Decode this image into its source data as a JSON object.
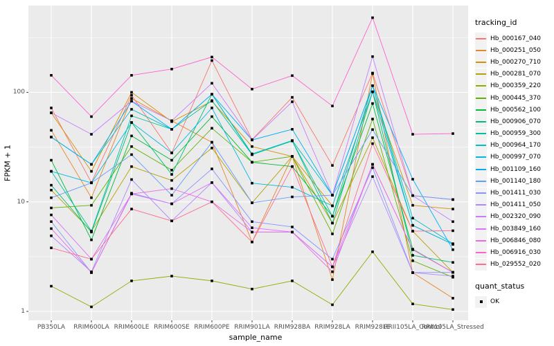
{
  "chart_data": {
    "type": "line",
    "title": "",
    "xlabel": "sample_name",
    "ylabel": "FPKM + 1",
    "y_scale": "log10",
    "ylim": [
      0.83,
      620
    ],
    "y_ticks": [
      1,
      10,
      100
    ],
    "y_tick_labels": [
      "1",
      "10",
      "100"
    ],
    "y_minor_ticks": [
      3.162,
      31.62,
      316.2
    ],
    "grid": true,
    "legend_position": "right",
    "categories": [
      "PB350LA",
      "RRIM600LA",
      "RRIM600LE",
      "RRIM600SE",
      "RRIM600PE",
      "RRIM901LA",
      "RRIM928BA",
      "RRIM928LA",
      "RRIM928LE",
      "RRII105LA_Control",
      "RRII105LA_Stressed"
    ],
    "series": [
      {
        "name": "Hb_000167_040",
        "color": "#F8766D",
        "values": [
          72,
          15,
          94,
          28,
          195,
          37,
          90,
          21.5,
          150,
          11.4,
          10.5
        ]
      },
      {
        "name": "Hb_000251_050",
        "color": "#E88526",
        "values": [
          45,
          10.9,
          88,
          55,
          35,
          4.3,
          26,
          1.95,
          148,
          2.26,
          1.32
        ]
      },
      {
        "name": "Hb_000270_710",
        "color": "#D39200",
        "values": [
          65,
          19,
          100,
          54,
          83,
          32,
          26,
          9.2,
          101,
          9.3,
          8.6
        ]
      },
      {
        "name": "Hb_000281_070",
        "color": "#B79F00",
        "values": [
          12.8,
          5.4,
          21,
          15.7,
          31,
          9.8,
          26,
          6.4,
          38.5,
          5.4,
          2.27
        ]
      },
      {
        "name": "Hb_000359_220",
        "color": "#93AA00",
        "values": [
          1.7,
          1.1,
          1.9,
          2.1,
          1.9,
          1.6,
          1.9,
          1.15,
          3.5,
          1.17,
          1.04
        ]
      },
      {
        "name": "Hb_000445_370",
        "color": "#5EB300",
        "values": [
          8.8,
          9.3,
          32,
          19.5,
          47,
          23,
          26,
          5.1,
          57,
          2.9,
          2.05
        ]
      },
      {
        "name": "Hb_000562_100",
        "color": "#00BA38",
        "values": [
          24,
          4.5,
          40,
          24,
          60,
          23,
          21,
          7.4,
          79,
          3.7,
          2.27
        ]
      },
      {
        "name": "Hb_000906_070",
        "color": "#00BF74",
        "values": [
          14.2,
          5.3,
          53,
          17.8,
          96,
          27,
          36,
          6.4,
          101,
          3.25,
          2.8
        ]
      },
      {
        "name": "Hb_000959_300",
        "color": "#00C19F",
        "values": [
          19,
          5.4,
          61,
          46,
          84,
          27,
          36,
          7.4,
          115,
          6.1,
          4.1
        ]
      },
      {
        "name": "Hb_000964_170",
        "color": "#00BFC4",
        "values": [
          39,
          22,
          70,
          46,
          96,
          27.4,
          36.3,
          11.5,
          115,
          7.1,
          4.15
        ]
      },
      {
        "name": "Hb_000997_070",
        "color": "#00B9E3",
        "values": [
          19,
          14.9,
          53,
          28,
          72,
          14.8,
          13.6,
          9.2,
          101,
          6.1,
          4.1
        ]
      },
      {
        "name": "Hb_001109_160",
        "color": "#00ADFA",
        "values": [
          39,
          22,
          83,
          46,
          96,
          36.7,
          46,
          11.5,
          115,
          16.1,
          3.66
        ]
      },
      {
        "name": "Hb_001140_180",
        "color": "#619CFF",
        "values": [
          10.9,
          14.9,
          27,
          11.5,
          35,
          9.8,
          11.1,
          11.5,
          45.7,
          11.4,
          10.5
        ]
      },
      {
        "name": "Hb_001411_030",
        "color": "#8893FF",
        "values": [
          6.6,
          2.26,
          12,
          9.6,
          20,
          6.6,
          5.9,
          3.0,
          20.5,
          2.26,
          2.27
        ]
      },
      {
        "name": "Hb_001411_050",
        "color": "#AE87FF",
        "values": [
          4.9,
          2.3,
          16,
          6.7,
          15,
          5.3,
          5.3,
          2.55,
          17,
          2.26,
          2.1
        ]
      },
      {
        "name": "Hb_002320_090",
        "color": "#C77CFF",
        "values": [
          65,
          41.4,
          83,
          55,
          121,
          36.7,
          82,
          11.5,
          212,
          11.4,
          6.6
        ]
      },
      {
        "name": "Hb_003849_160",
        "color": "#DB72FB",
        "values": [
          7.6,
          3.0,
          11.8,
          9.6,
          15,
          5.8,
          5.3,
          2.55,
          22,
          3.66,
          2.27
        ]
      },
      {
        "name": "Hb_006846_080",
        "color": "#EA6AE4",
        "values": [
          5.7,
          2.26,
          11.8,
          13.2,
          10,
          5.3,
          5.3,
          2.3,
          22,
          3.66,
          2.27
        ]
      },
      {
        "name": "Hb_006916_030",
        "color": "#FF61CC",
        "values": [
          143,
          60,
          143,
          163,
          210,
          107,
          142,
          75,
          480,
          41.4,
          42
        ]
      },
      {
        "name": "Hb_029552_020",
        "color": "#FF6C91",
        "values": [
          3.8,
          3.0,
          8.6,
          6.7,
          10,
          4.3,
          21,
          2.55,
          34,
          5.4,
          5.45
        ]
      }
    ],
    "marker": {
      "shape": "filled-square",
      "color": "#000000"
    },
    "legend": {
      "title": "tracking_id"
    },
    "legend2": {
      "title": "quant_status",
      "items": [
        {
          "label": "OK"
        }
      ]
    }
  },
  "theme": {
    "panel_bg": "#EBEBEB",
    "grid_color": "#FFFFFF",
    "tick_color": "#333333",
    "tick_label_color": "#4D4D4D",
    "axis_title_color": "#000000",
    "legend_key_bg": "#F2F2F2",
    "point_color": "#000000",
    "background": "#FFFFFF"
  }
}
